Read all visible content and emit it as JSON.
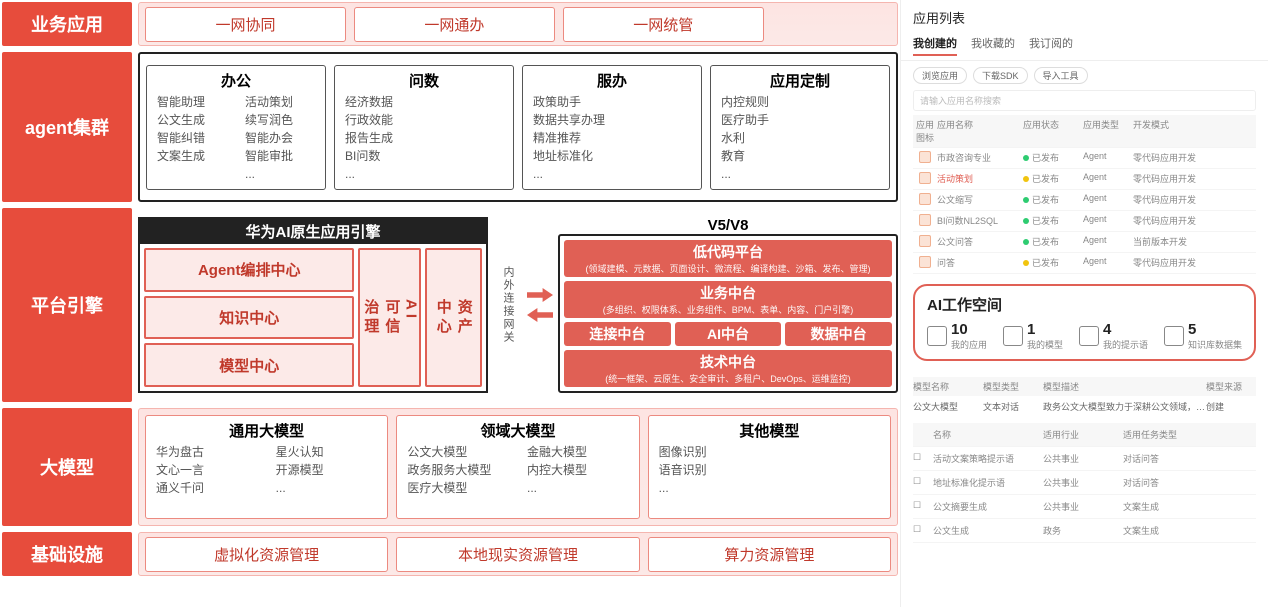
{
  "colors": {
    "primary": "#e74c3c",
    "accent": "#e06055",
    "border": "#222"
  },
  "layers": {
    "biz": {
      "label": "业务应用",
      "items": [
        "一网协同",
        "一网通办",
        "一网统管"
      ]
    },
    "agent": {
      "label": "agent集群",
      "cards": [
        {
          "title": "办公",
          "cols": [
            [
              "智能助理",
              "公文生成",
              "智能纠错",
              "文案生成"
            ],
            [
              "活动策划",
              "续写润色",
              "智能办会",
              "智能审批",
              "..."
            ]
          ]
        },
        {
          "title": "问数",
          "cols": [
            [
              "经济数据",
              "行政效能",
              "报告生成",
              "BI问数",
              "..."
            ]
          ]
        },
        {
          "title": "服办",
          "cols": [
            [
              "政策助手",
              "数据共享办理",
              "精准推荐",
              "地址标准化",
              "..."
            ]
          ]
        },
        {
          "title": "应用定制",
          "cols": [
            [
              "内控规则",
              "医疗助手",
              "水利",
              "教育",
              "..."
            ]
          ]
        }
      ]
    },
    "platform": {
      "label": "平台引擎",
      "engine": {
        "title": "华为AI原生应用引擎",
        "left": [
          "Agent编排中心",
          "知识中心",
          "模型中心"
        ],
        "mid": "AI\n可信\n治理",
        "right": "资产\n中心"
      },
      "gateway": "内外连接网关",
      "v5": {
        "title": "V5/V8",
        "rows": [
          {
            "t": "低代码平台",
            "s": "(领域建模、元数据、页面设计、微流程、编译构建、沙箱、发布、管理)"
          },
          {
            "t": "业务中台",
            "s": "(多组织、权限体系、业务组件、BPM、表单、内容、门户引擎)"
          },
          {
            "split": [
              "连接中台",
              "AI中台",
              "数据中台"
            ]
          },
          {
            "t": "技术中台",
            "s": "(统一框架、云原生、安全审计、多租户、DevOps、运维监控)"
          }
        ]
      }
    },
    "model": {
      "label": "大模型",
      "cards": [
        {
          "title": "通用大模型",
          "cols": [
            [
              "华为盘古",
              "文心一言",
              "通义千问"
            ],
            [
              "星火认知",
              "开源模型",
              "..."
            ]
          ]
        },
        {
          "title": "领域大模型",
          "cols": [
            [
              "公文大模型",
              "政务服务大模型",
              "医疗大模型"
            ],
            [
              "金融大模型",
              "内控大模型",
              "..."
            ]
          ]
        },
        {
          "title": "其他模型",
          "cols": [
            [
              "图像识别",
              "语音识别",
              "..."
            ]
          ]
        }
      ]
    },
    "infra": {
      "label": "基础设施",
      "items": [
        "虚拟化资源管理",
        "本地现实资源管理",
        "算力资源管理"
      ]
    }
  },
  "right": {
    "title": "应用列表",
    "tabs": [
      "我创建的",
      "我收藏的",
      "我订阅的"
    ],
    "chips": [
      "浏览应用",
      "下载SDK",
      "导入工具"
    ],
    "search": "请输入应用名称搜索",
    "table": {
      "headers": [
        "应用图标",
        "应用名称",
        "应用状态",
        "应用类型",
        "开发模式"
      ],
      "rows": [
        {
          "name": "市政咨询专业",
          "status": "已发布",
          "dot": "g",
          "type": "Agent",
          "mode": "零代码应用开发"
        },
        {
          "name": "活动策划",
          "status": "已发布",
          "dot": "y",
          "type": "Agent",
          "mode": "零代码应用开发",
          "hl": true
        },
        {
          "name": "公文缩写",
          "status": "已发布",
          "dot": "g",
          "type": "Agent",
          "mode": "零代码应用开发"
        },
        {
          "name": "BI问数NL2SQL",
          "status": "已发布",
          "dot": "g",
          "type": "Agent",
          "mode": "零代码应用开发"
        },
        {
          "name": "公文问答",
          "status": "已发布",
          "dot": "g",
          "type": "Agent",
          "mode": "当前版本开发"
        },
        {
          "name": "问答",
          "status": "已发布",
          "dot": "y",
          "type": "Agent",
          "mode": "零代码应用开发"
        }
      ]
    },
    "workspace": {
      "title": "AI工作空间",
      "items": [
        {
          "n": "10",
          "l": "我的应用"
        },
        {
          "n": "1",
          "l": "我的模型"
        },
        {
          "n": "4",
          "l": "我的提示语"
        },
        {
          "n": "5",
          "l": "知识库数据集"
        }
      ]
    },
    "models": {
      "headers": [
        "模型名称",
        "模型类型",
        "模型描述",
        "模型来源"
      ],
      "row": {
        "name": "公文大模型",
        "type": "文本对话",
        "desc": "政务公文大模型致力于深耕公文领域，打造智能化...",
        "src": "创建"
      }
    },
    "prompts": {
      "headers": [
        "名称",
        "适用行业",
        "适用任务类型"
      ],
      "rows": [
        {
          "name": "活动文案策略提示语",
          "ind": "公共事业",
          "task": "对话问答"
        },
        {
          "name": "地址标准化提示语",
          "ind": "公共事业",
          "task": "对话问答"
        },
        {
          "name": "公文摘要生成",
          "ind": "公共事业",
          "task": "文案生成"
        },
        {
          "name": "公文生成",
          "ind": "政务",
          "task": "文案生成"
        }
      ]
    }
  }
}
